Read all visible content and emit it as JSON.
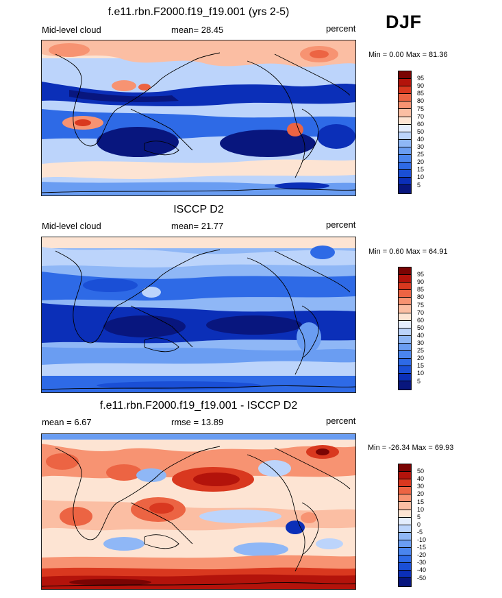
{
  "season": "DJF",
  "panels": [
    {
      "title": "f.e11.rbn.F2000.f19_f19.001 (yrs 2-5)",
      "left_label": "Mid-level cloud",
      "stat_label": "mean=  28.45",
      "units": "percent",
      "minmax": "Min =   0.00 Max =  81.36"
    },
    {
      "title": "ISCCP D2",
      "left_label": "Mid-level cloud",
      "stat_label": "mean=  21.77",
      "units": "percent",
      "minmax": "Min =   0.60 Max =  64.91"
    },
    {
      "title": "f.e11.rbn.F2000.f19_f19.001 - ISCCP D2",
      "left_label": "mean =   6.67",
      "stat_label": "rmse =  13.89",
      "units": "percent",
      "minmax": "Min = -26.34 Max =  69.93"
    }
  ],
  "chart_data": [
    {
      "type": "heatmap",
      "title": "f.e11.rbn.F2000.f19_f19.001 (yrs 2-5)",
      "subtitle": "Mid-level cloud",
      "units": "percent",
      "mean": 28.45,
      "min": 0.0,
      "max": 81.36,
      "colorbar_levels": [
        5,
        10,
        15,
        20,
        25,
        30,
        40,
        50,
        60,
        70,
        75,
        80,
        85,
        90,
        95
      ],
      "colorbar_colors": [
        "#08167e",
        "#0b2fb8",
        "#1a4fd6",
        "#2e6ae6",
        "#4a85ee",
        "#6a9df2",
        "#8fb7f6",
        "#bcd4fb",
        "#e4edfd",
        "#fde4d3",
        "#fbbea3",
        "#f79372",
        "#ec6443",
        "#d9381f",
        "#b3130b",
        "#7a0403"
      ]
    },
    {
      "type": "heatmap",
      "title": "ISCCP D2",
      "subtitle": "Mid-level cloud",
      "units": "percent",
      "mean": 21.77,
      "min": 0.6,
      "max": 64.91,
      "colorbar_levels": [
        5,
        10,
        15,
        20,
        25,
        30,
        40,
        50,
        60,
        70,
        75,
        80,
        85,
        90,
        95
      ],
      "colorbar_colors": [
        "#08167e",
        "#0b2fb8",
        "#1a4fd6",
        "#2e6ae6",
        "#4a85ee",
        "#6a9df2",
        "#8fb7f6",
        "#bcd4fb",
        "#e4edfd",
        "#fde4d3",
        "#fbbea3",
        "#f79372",
        "#ec6443",
        "#d9381f",
        "#b3130b",
        "#7a0403"
      ]
    },
    {
      "type": "heatmap",
      "title": "f.e11.rbn.F2000.f19_f19.001 - ISCCP D2",
      "units": "percent",
      "mean": 6.67,
      "rmse": 13.89,
      "min": -26.34,
      "max": 69.93,
      "colorbar_levels": [
        -50,
        -40,
        -30,
        -20,
        -15,
        -10,
        -5,
        0,
        5,
        10,
        15,
        20,
        30,
        40,
        50
      ],
      "colorbar_colors": [
        "#08167e",
        "#0b2fb8",
        "#1a4fd6",
        "#2e6ae6",
        "#4a85ee",
        "#6a9df2",
        "#8fb7f6",
        "#bcd4fb",
        "#e4edfd",
        "#fde4d3",
        "#fbbea3",
        "#f79372",
        "#ec6443",
        "#d9381f",
        "#b3130b",
        "#7a0403"
      ]
    }
  ]
}
